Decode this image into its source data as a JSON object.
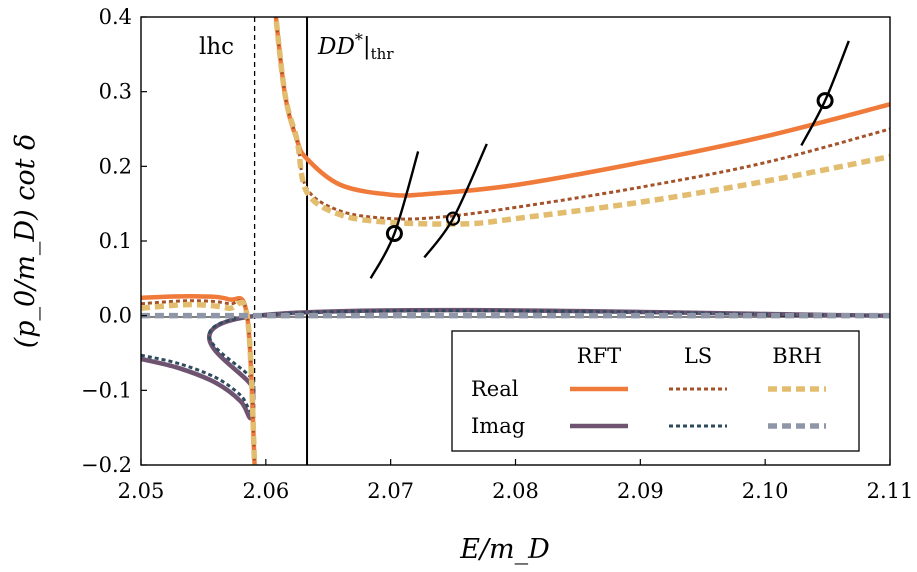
{
  "chart_data": {
    "type": "line",
    "xlabel": "E/m_D",
    "ylabel": "(p_0/m_D) cot δ",
    "xlim": [
      2.05,
      2.11
    ],
    "ylim": [
      -0.2,
      0.4
    ],
    "x_ticks": [
      "2.05",
      "2.06",
      "2.07",
      "2.08",
      "2.09",
      "2.10",
      "2.11"
    ],
    "y_ticks": [
      "−0.2",
      "−0.1",
      "0.0",
      "0.1",
      "0.2",
      "0.3",
      "0.4"
    ],
    "grid": false,
    "colors": {
      "rft_real": "#f07a3a",
      "ls_real": "#a5522a",
      "brh_real": "#e3bd6f",
      "rft_imag": "#6e5470",
      "ls_imag": "#2e4a5e",
      "brh_imag": "#8e96a8"
    },
    "vlines": [
      {
        "x": 2.0591,
        "label": "lhc",
        "style": "dashed"
      },
      {
        "x": 2.0633,
        "label": "DD*|thr",
        "style": "solid"
      }
    ],
    "series": [
      {
        "name": "RFT Real",
        "x": [
          2.05,
          2.054,
          2.057,
          2.0585,
          2.0591,
          2.0633,
          2.066,
          2.07,
          2.073,
          2.08,
          2.09,
          2.1,
          2.11
        ],
        "y": [
          0.024,
          0.026,
          0.022,
          0.0,
          -0.2,
          0.21,
          0.175,
          0.162,
          0.163,
          0.175,
          0.205,
          0.24,
          0.283
        ]
      },
      {
        "name": "LS Real",
        "x": [
          2.05,
          2.054,
          2.057,
          2.0585,
          2.0591,
          2.0633,
          2.066,
          2.07,
          2.074,
          2.08,
          2.09,
          2.1,
          2.11
        ],
        "y": [
          0.016,
          0.02,
          0.016,
          0.0,
          -0.2,
          0.17,
          0.14,
          0.13,
          0.132,
          0.145,
          0.172,
          0.205,
          0.25
        ]
      },
      {
        "name": "BRH Real",
        "x": [
          2.05,
          2.054,
          2.057,
          2.0585,
          2.0591,
          2.0633,
          2.066,
          2.07,
          2.076,
          2.08,
          2.09,
          2.1,
          2.11
        ],
        "y": [
          0.01,
          0.015,
          0.01,
          0.0,
          -0.2,
          0.165,
          0.135,
          0.125,
          0.123,
          0.13,
          0.152,
          0.18,
          0.213
        ]
      },
      {
        "name": "RFT Imag",
        "x": [
          2.05,
          2.053,
          2.056,
          2.058,
          2.0588,
          2.059,
          2.0593,
          2.11
        ],
        "y": [
          -0.058,
          -0.07,
          -0.09,
          -0.115,
          -0.137,
          -0.1,
          0.0,
          0.0
        ]
      },
      {
        "name": "LS Imag",
        "x": [
          2.05,
          2.053,
          2.056,
          2.058,
          2.0588,
          2.059,
          2.0593,
          2.11
        ],
        "y": [
          -0.053,
          -0.064,
          -0.083,
          -0.107,
          -0.127,
          -0.09,
          0.0,
          0.0
        ]
      },
      {
        "name": "BRH Imag",
        "x": [
          2.05,
          2.0593,
          2.11
        ],
        "y": [
          0.0,
          0.0,
          0.0
        ]
      }
    ],
    "crossings": [
      {
        "x": [
          2.0684,
          2.0703,
          2.0722
        ],
        "y": [
          0.05,
          0.11,
          0.22
        ]
      },
      {
        "x": [
          2.0727,
          2.075,
          2.0777
        ],
        "y": [
          0.078,
          0.13,
          0.23
        ]
      },
      {
        "x": [
          2.1029,
          2.1048,
          2.1067
        ],
        "y": [
          0.228,
          0.288,
          0.368
        ]
      }
    ],
    "crossing_points": [
      {
        "x": 2.0703,
        "y": 0.11,
        "size": "large"
      },
      {
        "x": 2.075,
        "y": 0.13,
        "size": "small"
      },
      {
        "x": 2.1048,
        "y": 0.288,
        "size": "large"
      }
    ],
    "legend": {
      "position": "lower-right",
      "col_headers": [
        "RFT",
        "LS",
        "BRH"
      ],
      "row_labels": [
        "Real",
        "Imag"
      ]
    }
  }
}
